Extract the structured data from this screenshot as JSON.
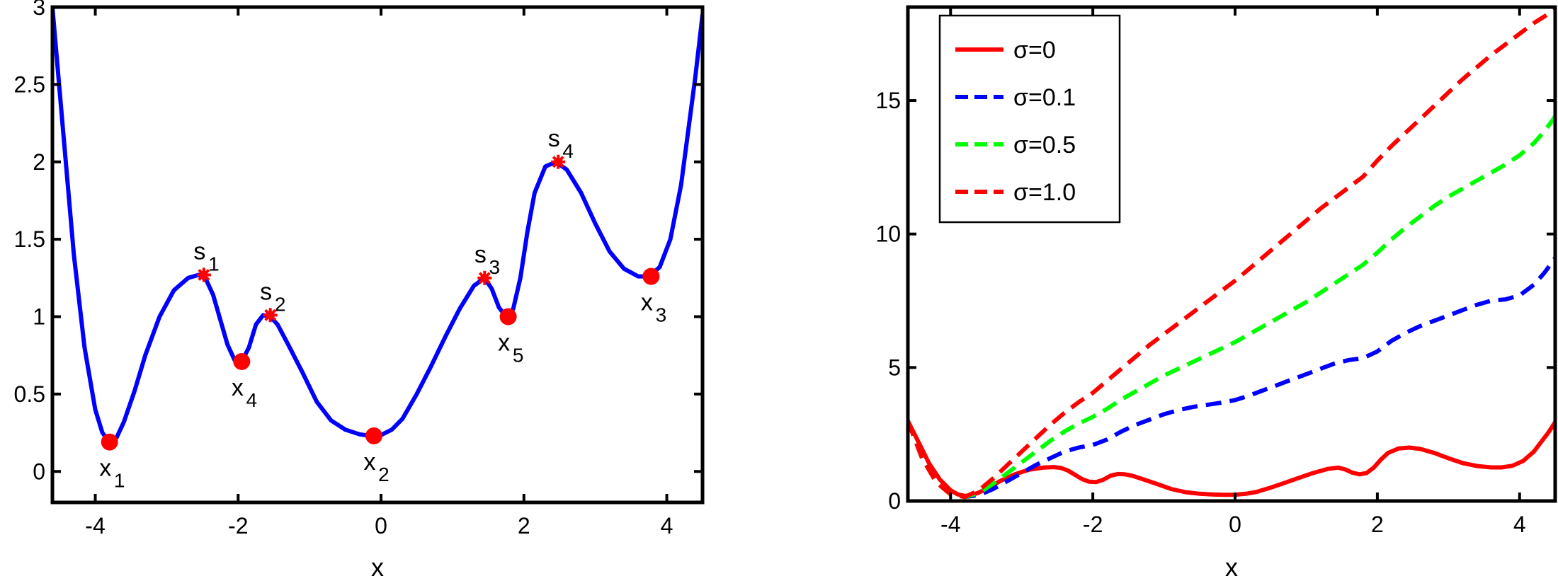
{
  "chart_data": [
    {
      "type": "line",
      "xlabel": "x",
      "ylabel": "",
      "xlim": [
        -4.6,
        4.5
      ],
      "ylim": [
        -0.2,
        3.0
      ],
      "xticks": [
        -4,
        -2,
        0,
        2,
        4
      ],
      "yticks": [
        0,
        0.5,
        1,
        1.5,
        2,
        2.5,
        3
      ],
      "xtick_labels": [
        "-4",
        "-2",
        "0",
        "2",
        "4"
      ],
      "ytick_labels": [
        "0",
        "0.5",
        "1",
        "1.5",
        "2",
        "2.5",
        "3"
      ],
      "grid": false,
      "series": [
        {
          "color": "#0000ff",
          "style": "solid",
          "x": [
            -4.6,
            -4.45,
            -4.3,
            -4.15,
            -4.0,
            -3.9,
            -3.8,
            -3.7,
            -3.6,
            -3.45,
            -3.3,
            -3.1,
            -2.9,
            -2.7,
            -2.55,
            -2.45,
            -2.35,
            -2.25,
            -2.15,
            -2.05,
            -1.95,
            -1.85,
            -1.75,
            -1.65,
            -1.55,
            -1.45,
            -1.3,
            -1.1,
            -0.9,
            -0.7,
            -0.5,
            -0.3,
            -0.15,
            0.0,
            0.15,
            0.3,
            0.5,
            0.7,
            0.9,
            1.1,
            1.3,
            1.45,
            1.55,
            1.65,
            1.75,
            1.85,
            1.95,
            2.05,
            2.15,
            2.3,
            2.45,
            2.6,
            2.8,
            3.0,
            3.2,
            3.4,
            3.6,
            3.75,
            3.9,
            4.05,
            4.2,
            4.3,
            4.4,
            4.5
          ],
          "y": [
            3.0,
            2.2,
            1.4,
            0.8,
            0.4,
            0.25,
            0.19,
            0.22,
            0.32,
            0.52,
            0.75,
            1.0,
            1.17,
            1.25,
            1.27,
            1.24,
            1.14,
            0.98,
            0.82,
            0.72,
            0.71,
            0.8,
            0.95,
            1.01,
            1.0,
            0.95,
            0.82,
            0.64,
            0.45,
            0.33,
            0.27,
            0.24,
            0.23,
            0.235,
            0.27,
            0.34,
            0.5,
            0.68,
            0.87,
            1.05,
            1.2,
            1.25,
            1.18,
            1.06,
            1.0,
            1.05,
            1.25,
            1.55,
            1.8,
            1.97,
            2.0,
            1.95,
            1.8,
            1.6,
            1.42,
            1.31,
            1.26,
            1.26,
            1.32,
            1.5,
            1.85,
            2.2,
            2.55,
            2.95
          ]
        }
      ],
      "markers": [
        {
          "label": "x",
          "sub": "1",
          "kind": "min",
          "x": -3.8,
          "y": 0.19
        },
        {
          "label": "s",
          "sub": "1",
          "kind": "saddle",
          "x": -2.48,
          "y": 1.27
        },
        {
          "label": "x",
          "sub": "4",
          "kind": "min",
          "x": -1.95,
          "y": 0.71
        },
        {
          "label": "s",
          "sub": "2",
          "kind": "saddle",
          "x": -1.55,
          "y": 1.01
        },
        {
          "label": "x",
          "sub": "2",
          "kind": "min",
          "x": -0.1,
          "y": 0.23
        },
        {
          "label": "s",
          "sub": "3",
          "kind": "saddle",
          "x": 1.45,
          "y": 1.25
        },
        {
          "label": "x",
          "sub": "5",
          "kind": "min",
          "x": 1.78,
          "y": 1.0
        },
        {
          "label": "s",
          "sub": "4",
          "kind": "saddle",
          "x": 2.48,
          "y": 2.0
        },
        {
          "label": "x",
          "sub": "3",
          "kind": "min",
          "x": 3.78,
          "y": 1.26
        }
      ]
    },
    {
      "type": "line",
      "xlabel": "x",
      "ylabel": "",
      "xlim": [
        -4.6,
        4.5
      ],
      "ylim": [
        0,
        18.5
      ],
      "xticks": [
        -4,
        -2,
        0,
        2,
        4
      ],
      "yticks": [
        0,
        5,
        10,
        15
      ],
      "xtick_labels": [
        "-4",
        "-2",
        "0",
        "2",
        "4"
      ],
      "ytick_labels": [
        "0",
        "5",
        "10",
        "15"
      ],
      "grid": false,
      "legend_position": "top-left",
      "series": [
        {
          "name": "σ=0",
          "color": "#ff0000",
          "style": "solid",
          "x": [
            -4.6,
            -4.45,
            -4.3,
            -4.15,
            -4.0,
            -3.9,
            -3.8,
            -3.7,
            -3.6,
            -3.45,
            -3.3,
            -3.1,
            -2.9,
            -2.7,
            -2.55,
            -2.45,
            -2.35,
            -2.25,
            -2.15,
            -2.05,
            -1.95,
            -1.85,
            -1.75,
            -1.65,
            -1.55,
            -1.45,
            -1.3,
            -1.1,
            -0.9,
            -0.7,
            -0.5,
            -0.3,
            -0.15,
            0.0,
            0.15,
            0.3,
            0.5,
            0.7,
            0.9,
            1.1,
            1.3,
            1.45,
            1.55,
            1.65,
            1.75,
            1.85,
            1.95,
            2.05,
            2.15,
            2.3,
            2.45,
            2.6,
            2.8,
            3.0,
            3.2,
            3.4,
            3.6,
            3.75,
            3.9,
            4.05,
            4.2,
            4.3,
            4.4,
            4.5
          ],
          "y": [
            3.0,
            2.2,
            1.4,
            0.8,
            0.4,
            0.25,
            0.19,
            0.22,
            0.32,
            0.52,
            0.75,
            1.0,
            1.17,
            1.25,
            1.27,
            1.24,
            1.14,
            0.98,
            0.82,
            0.72,
            0.71,
            0.8,
            0.95,
            1.01,
            1.0,
            0.95,
            0.82,
            0.64,
            0.45,
            0.33,
            0.27,
            0.24,
            0.23,
            0.235,
            0.27,
            0.34,
            0.5,
            0.68,
            0.87,
            1.05,
            1.2,
            1.25,
            1.18,
            1.06,
            1.0,
            1.05,
            1.25,
            1.55,
            1.8,
            1.97,
            2.0,
            1.95,
            1.8,
            1.6,
            1.42,
            1.31,
            1.26,
            1.26,
            1.32,
            1.5,
            1.85,
            2.2,
            2.55,
            2.95
          ]
        },
        {
          "name": "σ=0.1",
          "color": "#0000ff",
          "style": "dashed",
          "x": [
            -4.6,
            -4.4,
            -4.2,
            -4.0,
            -3.8,
            -3.6,
            -3.4,
            -3.2,
            -3.0,
            -2.8,
            -2.6,
            -2.4,
            -2.2,
            -2.0,
            -1.8,
            -1.6,
            -1.4,
            -1.2,
            -1.0,
            -0.8,
            -0.6,
            -0.4,
            -0.2,
            0.0,
            0.2,
            0.4,
            0.6,
            0.8,
            1.0,
            1.2,
            1.4,
            1.6,
            1.8,
            2.0,
            2.2,
            2.4,
            2.6,
            2.8,
            3.0,
            3.2,
            3.4,
            3.6,
            3.8,
            4.0,
            4.2,
            4.35,
            4.5
          ],
          "y": [
            3.0,
            1.6,
            0.7,
            0.25,
            0.15,
            0.22,
            0.45,
            0.75,
            1.05,
            1.35,
            1.6,
            1.85,
            2.0,
            2.1,
            2.3,
            2.6,
            2.85,
            3.05,
            3.25,
            3.4,
            3.52,
            3.6,
            3.68,
            3.78,
            3.95,
            4.15,
            4.35,
            4.55,
            4.75,
            4.95,
            5.15,
            5.28,
            5.35,
            5.6,
            6.0,
            6.3,
            6.55,
            6.75,
            6.95,
            7.15,
            7.35,
            7.5,
            7.55,
            7.7,
            8.1,
            8.55,
            9.1
          ]
        },
        {
          "name": "σ=0.5",
          "color": "#00ff00",
          "style": "dashed",
          "x": [
            -4.6,
            -4.4,
            -4.2,
            -4.0,
            -3.8,
            -3.6,
            -3.4,
            -3.2,
            -3.0,
            -2.8,
            -2.6,
            -2.4,
            -2.2,
            -2.0,
            -1.8,
            -1.6,
            -1.4,
            -1.2,
            -1.0,
            -0.8,
            -0.6,
            -0.4,
            -0.2,
            0.0,
            0.2,
            0.4,
            0.6,
            0.8,
            1.0,
            1.2,
            1.4,
            1.6,
            1.8,
            2.0,
            2.2,
            2.4,
            2.6,
            2.8,
            3.0,
            3.2,
            3.4,
            3.6,
            3.8,
            4.0,
            4.2,
            4.35,
            4.5
          ],
          "y": [
            3.0,
            1.6,
            0.7,
            0.25,
            0.15,
            0.3,
            0.65,
            1.05,
            1.45,
            1.85,
            2.25,
            2.6,
            2.9,
            3.15,
            3.45,
            3.8,
            4.1,
            4.4,
            4.7,
            4.95,
            5.2,
            5.45,
            5.7,
            5.95,
            6.25,
            6.55,
            6.85,
            7.15,
            7.45,
            7.8,
            8.15,
            8.5,
            8.85,
            9.3,
            9.8,
            10.25,
            10.65,
            11.05,
            11.4,
            11.7,
            12.0,
            12.3,
            12.6,
            12.95,
            13.4,
            13.85,
            14.4
          ]
        },
        {
          "name": "σ=1.0",
          "color": "#ff0000",
          "style": "dashed",
          "x": [
            -4.6,
            -4.4,
            -4.2,
            -4.0,
            -3.8,
            -3.6,
            -3.4,
            -3.2,
            -3.0,
            -2.8,
            -2.6,
            -2.4,
            -2.2,
            -2.0,
            -1.8,
            -1.6,
            -1.4,
            -1.2,
            -1.0,
            -0.8,
            -0.6,
            -0.4,
            -0.2,
            0.0,
            0.2,
            0.4,
            0.6,
            0.8,
            1.0,
            1.2,
            1.4,
            1.6,
            1.8,
            2.0,
            2.2,
            2.4,
            2.6,
            2.8,
            3.0,
            3.2,
            3.4,
            3.6,
            3.8,
            4.0,
            4.2,
            4.35,
            4.5
          ],
          "y": [
            3.0,
            1.6,
            0.7,
            0.25,
            0.15,
            0.4,
            0.85,
            1.35,
            1.85,
            2.35,
            2.85,
            3.3,
            3.7,
            4.05,
            4.5,
            4.95,
            5.4,
            5.85,
            6.25,
            6.65,
            7.05,
            7.45,
            7.85,
            8.25,
            8.7,
            9.15,
            9.6,
            10.05,
            10.5,
            10.95,
            11.35,
            11.75,
            12.15,
            12.75,
            13.3,
            13.8,
            14.3,
            14.8,
            15.3,
            15.8,
            16.25,
            16.7,
            17.1,
            17.5,
            17.9,
            18.15,
            18.4
          ]
        }
      ]
    }
  ]
}
